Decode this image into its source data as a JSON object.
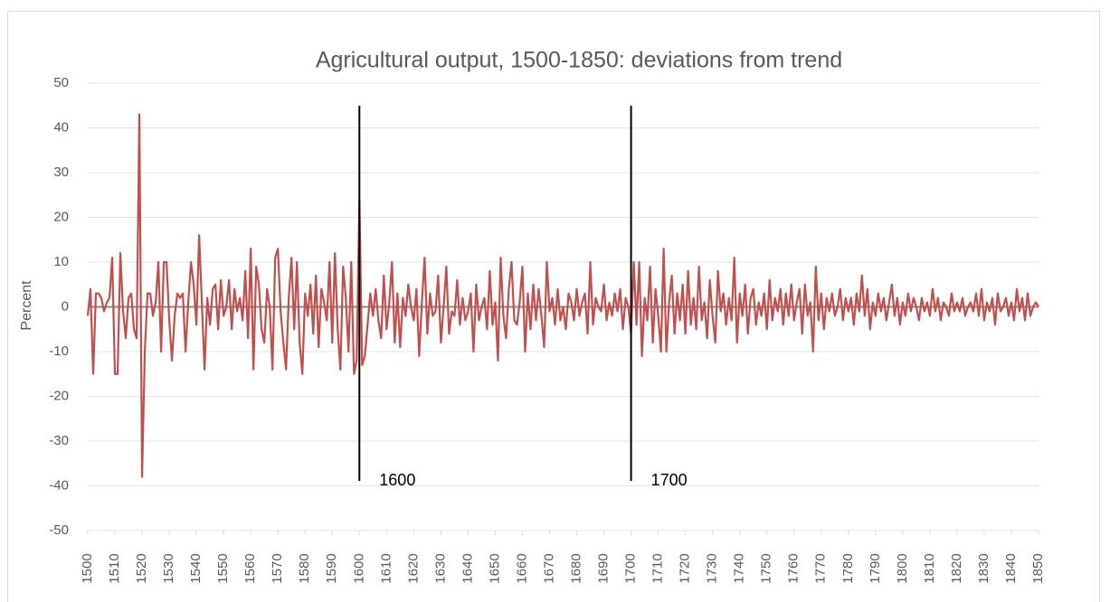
{
  "chart_data": {
    "type": "line",
    "title": "Agricultural output, 1500-1850: deviations from trend",
    "y_label": "Percent",
    "color": "#c0504d",
    "x": [
      1500,
      1501,
      1502,
      1503,
      1504,
      1505,
      1506,
      1507,
      1508,
      1509,
      1510,
      1511,
      1512,
      1513,
      1514,
      1515,
      1516,
      1517,
      1518,
      1519,
      1520,
      1521,
      1522,
      1523,
      1524,
      1525,
      1526,
      1527,
      1528,
      1529,
      1530,
      1531,
      1532,
      1533,
      1534,
      1535,
      1536,
      1537,
      1538,
      1539,
      1540,
      1541,
      1542,
      1543,
      1544,
      1545,
      1546,
      1547,
      1548,
      1549,
      1550,
      1551,
      1552,
      1553,
      1554,
      1555,
      1556,
      1557,
      1558,
      1559,
      1560,
      1561,
      1562,
      1563,
      1564,
      1565,
      1566,
      1567,
      1568,
      1569,
      1570,
      1571,
      1572,
      1573,
      1574,
      1575,
      1576,
      1577,
      1578,
      1579,
      1580,
      1581,
      1582,
      1583,
      1584,
      1585,
      1586,
      1587,
      1588,
      1589,
      1590,
      1591,
      1592,
      1593,
      1594,
      1595,
      1596,
      1597,
      1598,
      1599,
      1600,
      1601,
      1602,
      1603,
      1604,
      1605,
      1606,
      1607,
      1608,
      1609,
      1610,
      1611,
      1612,
      1613,
      1614,
      1615,
      1616,
      1617,
      1618,
      1619,
      1620,
      1621,
      1622,
      1623,
      1624,
      1625,
      1626,
      1627,
      1628,
      1629,
      1630,
      1631,
      1632,
      1633,
      1634,
      1635,
      1636,
      1637,
      1638,
      1639,
      1640,
      1641,
      1642,
      1643,
      1644,
      1645,
      1646,
      1647,
      1648,
      1649,
      1650,
      1651,
      1652,
      1653,
      1654,
      1655,
      1656,
      1657,
      1658,
      1659,
      1660,
      1661,
      1662,
      1663,
      1664,
      1665,
      1666,
      1667,
      1668,
      1669,
      1670,
      1671,
      1672,
      1673,
      1674,
      1675,
      1676,
      1677,
      1678,
      1679,
      1680,
      1681,
      1682,
      1683,
      1684,
      1685,
      1686,
      1687,
      1688,
      1689,
      1690,
      1691,
      1692,
      1693,
      1694,
      1695,
      1696,
      1697,
      1698,
      1699,
      1700,
      1701,
      1702,
      1703,
      1704,
      1705,
      1706,
      1707,
      1708,
      1709,
      1710,
      1711,
      1712,
      1713,
      1714,
      1715,
      1716,
      1717,
      1718,
      1719,
      1720,
      1721,
      1722,
      1723,
      1724,
      1725,
      1726,
      1727,
      1728,
      1729,
      1730,
      1731,
      1732,
      1733,
      1734,
      1735,
      1736,
      1737,
      1738,
      1739,
      1740,
      1741,
      1742,
      1743,
      1744,
      1745,
      1746,
      1747,
      1748,
      1749,
      1750,
      1751,
      1752,
      1753,
      1754,
      1755,
      1756,
      1757,
      1758,
      1759,
      1760,
      1761,
      1762,
      1763,
      1764,
      1765,
      1766,
      1767,
      1768,
      1769,
      1770,
      1771,
      1772,
      1773,
      1774,
      1775,
      1776,
      1777,
      1778,
      1779,
      1780,
      1781,
      1782,
      1783,
      1784,
      1785,
      1786,
      1787,
      1788,
      1789,
      1790,
      1791,
      1792,
      1793,
      1794,
      1795,
      1796,
      1797,
      1798,
      1799,
      1800,
      1801,
      1802,
      1803,
      1804,
      1805,
      1806,
      1807,
      1808,
      1809,
      1810,
      1811,
      1812,
      1813,
      1814,
      1815,
      1816,
      1817,
      1818,
      1819,
      1820,
      1821,
      1822,
      1823,
      1824,
      1825,
      1826,
      1827,
      1828,
      1829,
      1830,
      1831,
      1832,
      1833,
      1834,
      1835,
      1836,
      1837,
      1838,
      1839,
      1840,
      1841,
      1842,
      1843,
      1844,
      1845,
      1846,
      1847,
      1848,
      1849,
      1850
    ],
    "values": [
      -2,
      4,
      -15,
      3,
      3,
      2,
      -1,
      1,
      2,
      11,
      -15,
      -15,
      12,
      -1,
      -7,
      2,
      3,
      -5,
      -7,
      43,
      -38,
      -10,
      3,
      3,
      -2,
      1,
      10,
      -10,
      10,
      10,
      -3,
      -12,
      -2,
      3,
      2,
      3,
      -10,
      1,
      10,
      5,
      -4,
      16,
      1,
      -14,
      2,
      -4,
      4,
      5,
      -5,
      6,
      -2,
      0,
      6,
      -5,
      4,
      -1,
      2,
      -3,
      8,
      -7,
      13,
      -14,
      9,
      5,
      -5,
      -8,
      4,
      0,
      -14,
      11,
      13,
      -1,
      -8,
      -14,
      2,
      11,
      -5,
      10,
      -8,
      -15,
      3,
      -2,
      5,
      -6,
      7,
      -9,
      4,
      1,
      -3,
      10,
      -8,
      12,
      -5,
      -14,
      9,
      2,
      -10,
      10,
      -15,
      -12,
      24,
      -13,
      -11,
      -4,
      3,
      -2,
      4,
      -3,
      -7,
      7,
      -5,
      1,
      10,
      -8,
      3,
      -9,
      2,
      -2,
      5,
      0,
      -3,
      4,
      -11,
      1,
      11,
      -6,
      3,
      -2,
      -1,
      7,
      -8,
      0,
      9,
      -6,
      -1,
      -2,
      6,
      -4,
      2,
      -3,
      -1,
      3,
      -10,
      5,
      -3,
      0,
      2,
      -5,
      8,
      -4,
      1,
      -12,
      11,
      -2,
      -7,
      4,
      10,
      -3,
      -4,
      1,
      9,
      -10,
      3,
      -5,
      5,
      -3,
      4,
      -2,
      -9,
      10,
      -1,
      2,
      -4,
      4,
      -3,
      0,
      -5,
      3,
      1,
      -3,
      4,
      -2,
      1,
      3,
      -6,
      10,
      -4,
      2,
      0,
      -1,
      5,
      -3,
      1,
      -2,
      3,
      -1,
      4,
      -5,
      2,
      0,
      -6,
      10,
      -4,
      10,
      -11,
      2,
      -3,
      9,
      -8,
      4,
      -2,
      -10,
      13,
      -10,
      1,
      7,
      -6,
      3,
      -3,
      5,
      -6,
      8,
      -4,
      2,
      -5,
      9,
      -3,
      1,
      -7,
      6,
      -2,
      -8,
      8,
      -1,
      3,
      -4,
      2,
      -3,
      11,
      -8,
      3,
      -2,
      5,
      -6,
      2,
      4,
      -4,
      1,
      -2,
      3,
      -5,
      6,
      -3,
      2,
      -1,
      4,
      -4,
      3,
      -2,
      5,
      -3,
      1,
      4,
      -6,
      5,
      -2,
      1,
      -10,
      9,
      -3,
      3,
      -5,
      2,
      -1,
      3,
      -2,
      0,
      4,
      -3,
      2,
      -1,
      2,
      -4,
      3,
      -1,
      7,
      -2,
      4,
      -5,
      1,
      -2,
      3,
      -1,
      2,
      -3,
      1,
      5,
      -2,
      2,
      -4,
      1,
      -2,
      3,
      -1,
      2,
      0,
      -3,
      2,
      -1,
      1,
      -2,
      4,
      -1,
      2,
      -3,
      1,
      0,
      -2,
      3,
      -1,
      1,
      -1,
      2,
      -2,
      0,
      1,
      -1,
      3,
      -2,
      4,
      -3,
      1,
      -1,
      2,
      -4,
      3,
      -1,
      0,
      2,
      -2,
      1,
      -3,
      4,
      -1,
      2,
      -3,
      3,
      -2,
      0,
      1,
      0
    ],
    "xlim": [
      1500,
      1850
    ],
    "xticks": [
      1500,
      1510,
      1520,
      1530,
      1540,
      1550,
      1560,
      1570,
      1580,
      1590,
      1600,
      1610,
      1620,
      1630,
      1640,
      1650,
      1660,
      1670,
      1680,
      1690,
      1700,
      1710,
      1720,
      1730,
      1740,
      1750,
      1760,
      1770,
      1780,
      1790,
      1800,
      1810,
      1820,
      1830,
      1840,
      1850
    ],
    "ylim": [
      -50,
      50
    ],
    "yticks": [
      -50,
      -40,
      -30,
      -20,
      -10,
      0,
      10,
      20,
      30,
      40,
      50
    ],
    "grid": true,
    "vlines": [
      1600,
      1700
    ]
  }
}
